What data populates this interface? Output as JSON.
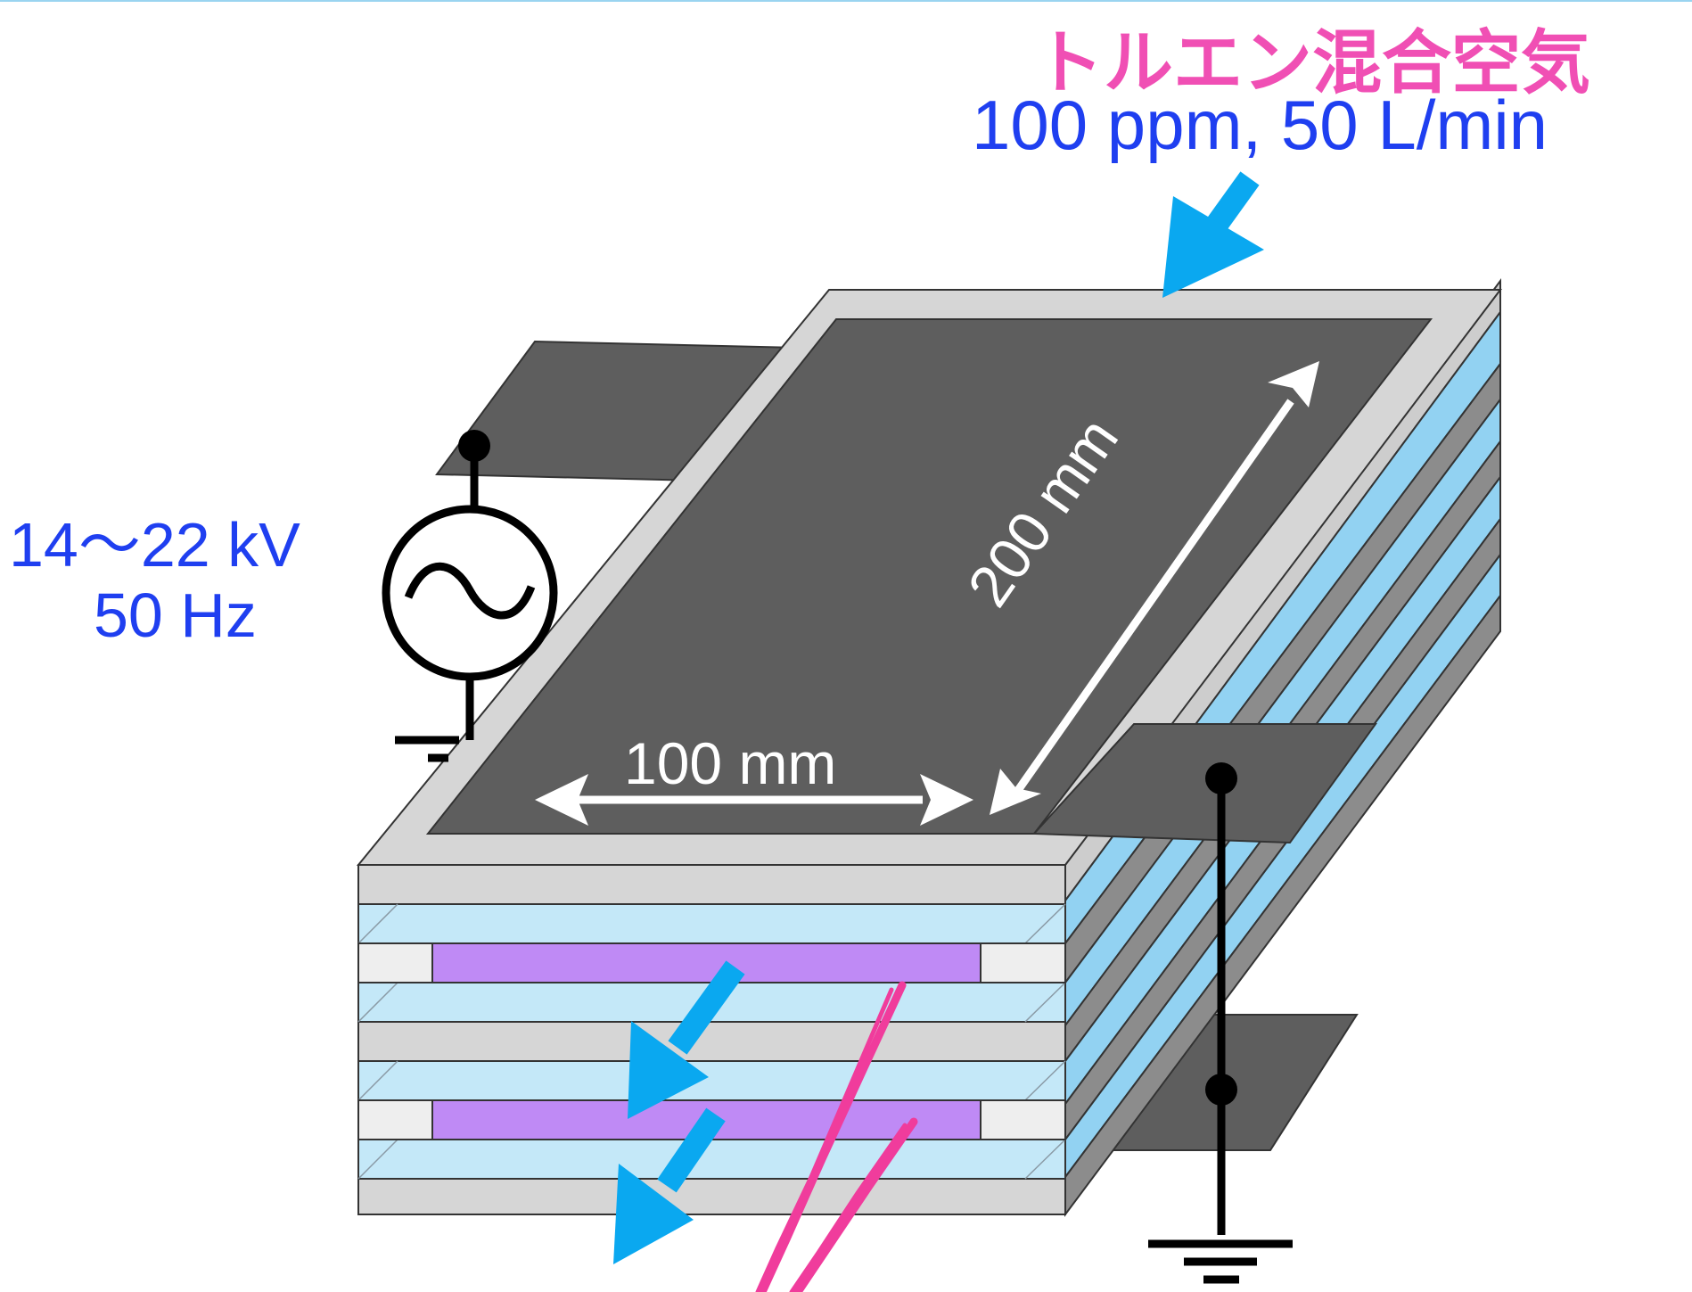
{
  "gas_inlet": {
    "name": "トルエン混合空気",
    "conditions": "100 ppm, 50 L/min"
  },
  "power_supply": {
    "voltage": "14～22 kV",
    "frequency": "50 Hz"
  },
  "dimensions": {
    "width": "100 mm",
    "length": "200 mm"
  },
  "colors": {
    "electrode": "#5e5e5e",
    "plate_frame": "#d6d6d6",
    "dielectric": "#c4e8f8",
    "plasma": "#bf8af5",
    "gas_flow_arrow": "#0aa8f0",
    "uv_light": "#f03c9c",
    "title_pink": "#f04fb4",
    "text_blue": "#1f3ff0"
  }
}
